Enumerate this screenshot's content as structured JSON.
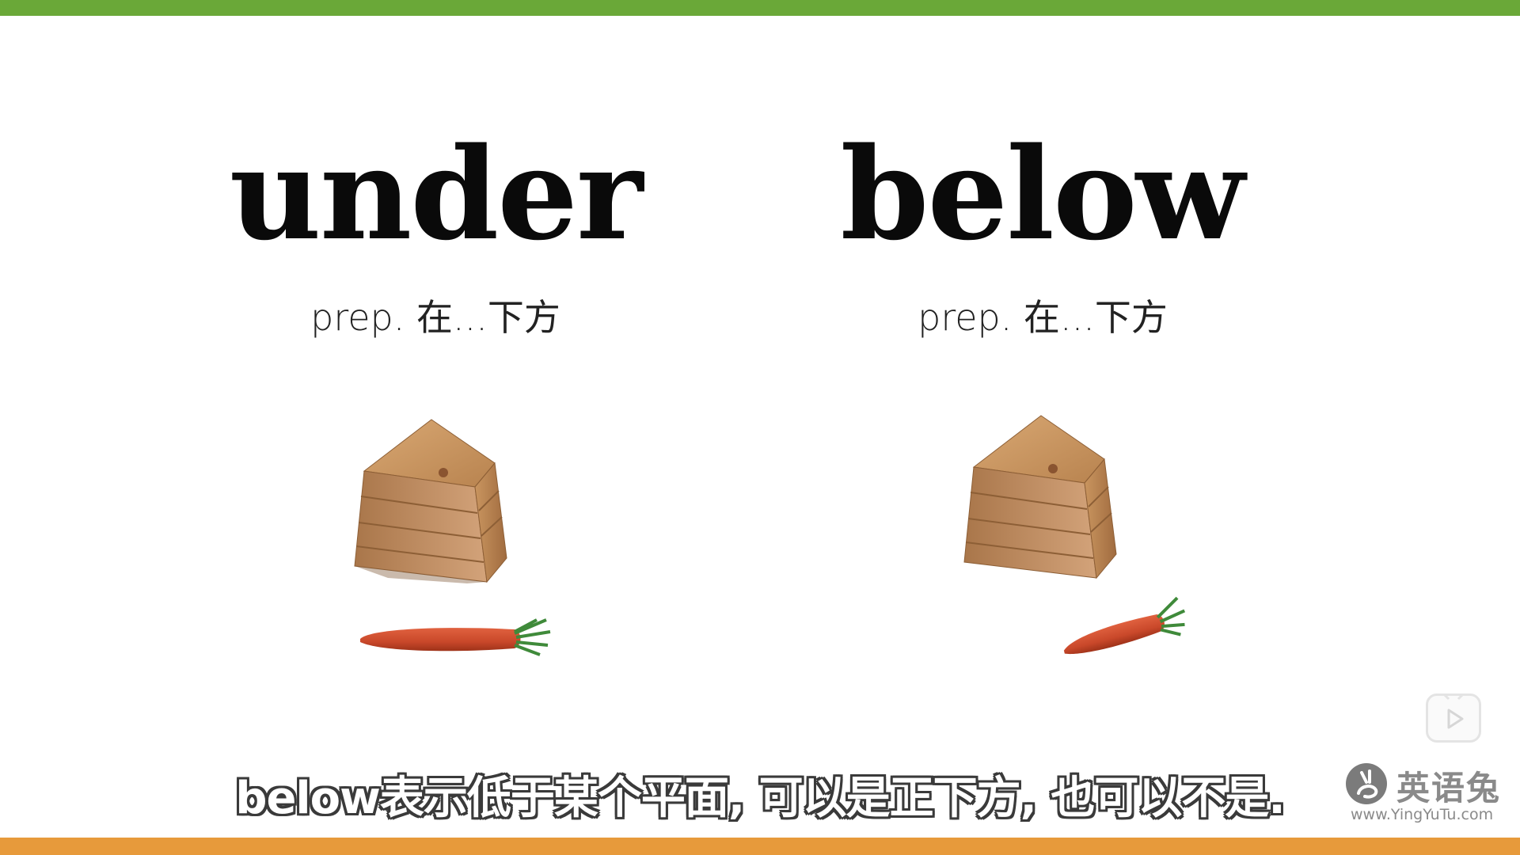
{
  "left_panel": {
    "word": "under",
    "definition": "prep. 在...下方"
  },
  "right_panel": {
    "word": "below",
    "definition": "prep. 在...下方"
  },
  "subtitle": "below表示低于某个平面, 可以是正下方, 也可以不是.",
  "watermark": {
    "brand": "英语兔",
    "url": "www.YingYuTu.com"
  },
  "colors": {
    "top_bar": "#6aa838",
    "bottom_bar": "#e79a3b",
    "carrot": "#c9482a",
    "wood": "#c48a55"
  },
  "icons": [
    "wooden-box-icon",
    "carrot-icon",
    "play-icon",
    "rabbit-logo-icon"
  ]
}
